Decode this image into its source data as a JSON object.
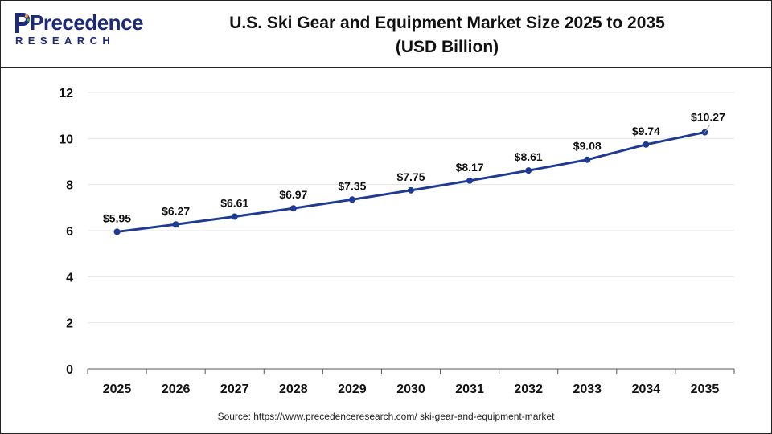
{
  "logo": {
    "brand_text": "Precedence",
    "brand_sub": "RESEARCH"
  },
  "header": {
    "title_line1": "U.S. Ski Gear and Equipment Market Size 2025 to 2035",
    "title_line2": "(USD Billion)"
  },
  "colors": {
    "line": "#1f3a93",
    "brand": "#1d2a7a",
    "accent_green": "#4aa63e",
    "accent_orange": "#f2994a",
    "grid": "#e6e6e6"
  },
  "chart_data": {
    "type": "line",
    "title": "U.S. Ski Gear and Equipment Market Size 2025 to 2035 (USD Billion)",
    "xlabel": "",
    "ylabel": "",
    "categories": [
      "2025",
      "2026",
      "2027",
      "2028",
      "2029",
      "2030",
      "2031",
      "2032",
      "2033",
      "2034",
      "2035"
    ],
    "series": [
      {
        "values": [
          5.95,
          6.27,
          6.61,
          6.97,
          7.35,
          7.75,
          8.17,
          8.61,
          9.08,
          9.74,
          10.27
        ],
        "labels": [
          "$5.95",
          "$6.27",
          "$6.61",
          "$6.97",
          "$7.35",
          "$7.75",
          "$8.17",
          "$8.61",
          "$9.08",
          "$9.74",
          "$10.27"
        ]
      }
    ],
    "ylim": [
      0,
      12
    ],
    "yticks": [
      0,
      2,
      4,
      6,
      8,
      10,
      12
    ],
    "grid": true,
    "legend": "none"
  },
  "footer": {
    "source": "Source: https://www.precedenceresearch.com/ ski-gear-and-equipment-market"
  }
}
